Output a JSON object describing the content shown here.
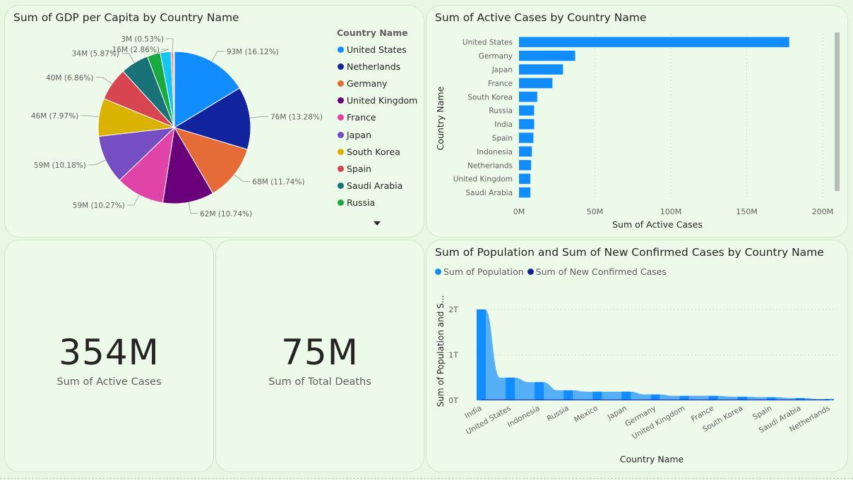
{
  "pie_card": {
    "title": "Sum of GDP per Capita by Country Name",
    "legend_title": "Country Name",
    "legend_more_icon": "chevron-down-icon"
  },
  "bar_card": {
    "title": "Sum of Active Cases by Country Name"
  },
  "kpi_active": {
    "value": "354M",
    "label": "Sum of Active Cases"
  },
  "kpi_deaths": {
    "value": "75M",
    "label": "Sum of Total Deaths"
  },
  "combo_card": {
    "title": "Sum of Population and Sum of New Confirmed Cases by Country Name",
    "legend": [
      "Sum of Population",
      "Sum of New Confirmed Cases"
    ],
    "legend_colors": [
      "#118DFF",
      "#12239E"
    ]
  },
  "chart_data": [
    {
      "type": "pie",
      "title": "Sum of GDP per Capita by Country Name",
      "legend_title": "Country Name",
      "legend_position": "right",
      "slices": [
        {
          "name": "United States",
          "value": 93,
          "label": "93M (16.12%)",
          "color": "#118DFF"
        },
        {
          "name": "Netherlands",
          "value": 76,
          "label": "76M (13.28%)",
          "color": "#12239E"
        },
        {
          "name": "Germany",
          "value": 68,
          "label": "68M (11.74%)",
          "color": "#E66C37"
        },
        {
          "name": "United Kingdom",
          "value": 62,
          "label": "62M (10.74%)",
          "color": "#6B007B"
        },
        {
          "name": "France",
          "value": 59,
          "label": "59M (10.27%)",
          "color": "#E044A7"
        },
        {
          "name": "Japan",
          "value": 59,
          "label": "59M (10.18%)",
          "color": "#744EC2"
        },
        {
          "name": "South Korea",
          "value": 46,
          "label": "46M (7.97%)",
          "color": "#D9B300"
        },
        {
          "name": "Spain",
          "value": 40,
          "label": "40M (6.86%)",
          "color": "#D64550"
        },
        {
          "name": "Saudi Arabia",
          "value": 34,
          "label": "34M (5.87%)",
          "color": "#197278"
        },
        {
          "name": "Russia",
          "value": 16,
          "label": "16M (2.86%)",
          "color": "#1AAB40"
        },
        {
          "name": "",
          "value": 13,
          "label": "",
          "color": "#15C6F4"
        },
        {
          "name": "",
          "value": 3,
          "label": "3M (0.53%)",
          "color": "#F08B7D"
        },
        {
          "name": "",
          "value": 1,
          "label": "",
          "color": "#A66999"
        }
      ]
    },
    {
      "type": "bar",
      "orientation": "horizontal",
      "title": "Sum of Active Cases by Country Name",
      "xlabel": "Sum of Active Cases",
      "ylabel": "Country Name",
      "xlim": [
        0,
        200
      ],
      "xticks": [
        "0M",
        "50M",
        "100M",
        "150M",
        "200M"
      ],
      "categories": [
        "United States",
        "Germany",
        "Japan",
        "France",
        "South Korea",
        "Russia",
        "India",
        "Spain",
        "Indonesia",
        "Netherlands",
        "United Kingdom",
        "Saudi Arabia"
      ],
      "values": [
        178,
        37,
        29,
        22,
        12,
        10,
        10,
        9.5,
        8.5,
        8,
        7.5,
        7.5
      ],
      "color": "#118DFF"
    },
    {
      "type": "area",
      "title": "Sum of Population and Sum of New Confirmed Cases by Country Name",
      "xlabel": "Country Name",
      "ylabel": "Sum of Population and S...",
      "ylim": [
        0,
        2
      ],
      "yticks": [
        "0T",
        "1T",
        "2T"
      ],
      "categories": [
        "India",
        "United States",
        "Indonesia",
        "Russia",
        "Mexico",
        "Japan",
        "Germany",
        "United Kingdom",
        "France",
        "South Korea",
        "Spain",
        "Saudi Arabia",
        "Netherlands"
      ],
      "series": [
        {
          "name": "Sum of Population",
          "values": [
            2.0,
            0.5,
            0.4,
            0.22,
            0.19,
            0.19,
            0.13,
            0.1,
            0.1,
            0.08,
            0.07,
            0.05,
            0.03
          ]
        },
        {
          "name": "Sum of New Confirmed Cases",
          "values": [
            0.01,
            0.01,
            0.01,
            0.01,
            0.01,
            0.01,
            0.01,
            0.01,
            0.01,
            0.01,
            0.01,
            0.01,
            0.01
          ]
        }
      ]
    }
  ]
}
